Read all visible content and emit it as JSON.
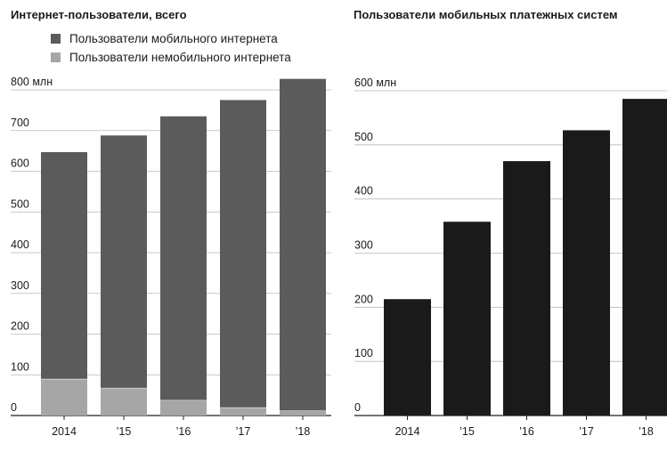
{
  "chart_data": [
    {
      "type": "bar",
      "stacked": true,
      "title": "Интернет-пользователи, всего",
      "categories": [
        "2014",
        "’15",
        "’16",
        "’17",
        "’18"
      ],
      "series": [
        {
          "name": "Пользователи немобильного интернета",
          "color": "#a6a6a6",
          "values": [
            90,
            68,
            38,
            20,
            12
          ]
        },
        {
          "name": "Пользователи мобильного интернета",
          "color": "#5b5b5b",
          "values": [
            557,
            620,
            697,
            755,
            815
          ]
        }
      ],
      "ylim": [
        0,
        800
      ],
      "yticks": [
        0,
        100,
        200,
        300,
        400,
        500,
        600,
        700,
        800
      ],
      "ytick_labels": [
        "0",
        "100",
        "200",
        "300",
        "400",
        "500",
        "600",
        "700",
        "800 млн"
      ],
      "grid": true,
      "legend": "top-left"
    },
    {
      "type": "bar",
      "title": "Пользователи мобильных платежных систем",
      "categories": [
        "2014",
        "’15",
        "’16",
        "’17",
        "’18"
      ],
      "series": [
        {
          "color": "#1a1a1a",
          "values": [
            215,
            358,
            470,
            527,
            585
          ]
        }
      ],
      "ylim": [
        0,
        600
      ],
      "yticks": [
        0,
        100,
        200,
        300,
        400,
        500,
        600
      ],
      "ytick_labels": [
        "0",
        "100",
        "200",
        "300",
        "400",
        "500",
        "600 млн"
      ],
      "grid": true
    }
  ]
}
